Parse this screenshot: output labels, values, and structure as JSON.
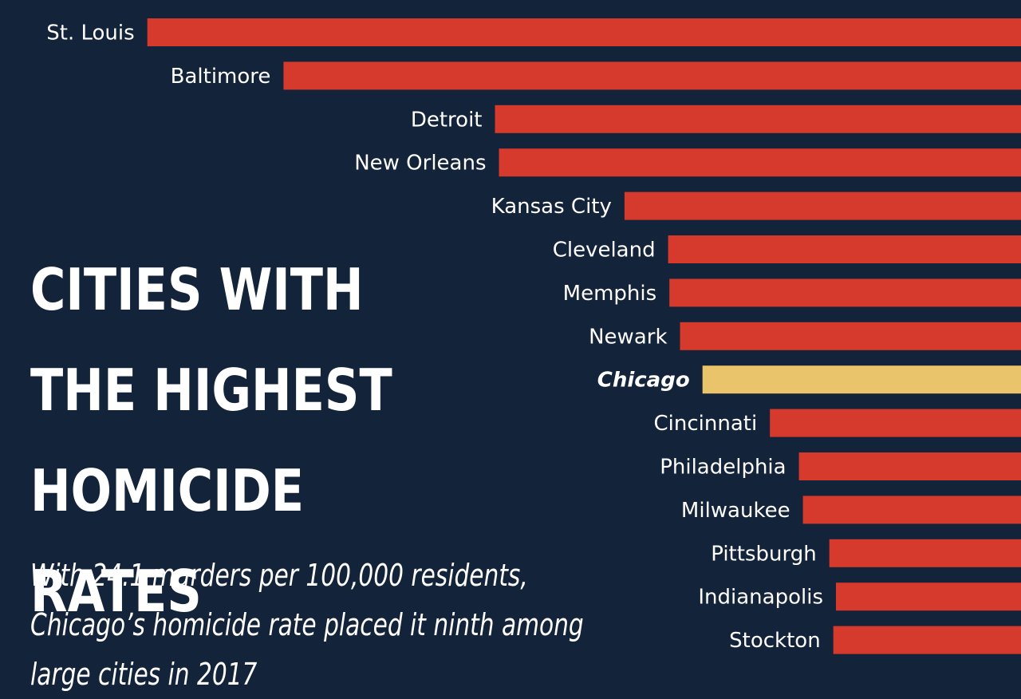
{
  "title": "CITIES WITH\nTHE HIGHEST\nHOMICIDE RATES",
  "subtitle": "With 24.1 murders per 100,000 residents, Chicago’s homicide rate placed it ninth among large cities in 2017",
  "colors": {
    "background": "#13233a",
    "bar": "#d63a2c",
    "highlight": "#e9c46a",
    "text": "#ffffff"
  },
  "chart_data": {
    "type": "bar",
    "orientation": "horizontal",
    "highlight": "Chicago",
    "categories": [
      "St. Louis",
      "Baltimore",
      "Detroit",
      "New Orleans",
      "Kansas City",
      "Cleveland",
      "Memphis",
      "Newark",
      "Chicago",
      "Cincinnati",
      "Philadelphia",
      "Milwaukee",
      "Pittsburgh",
      "Indianapolis",
      "Stockton"
    ],
    "values": [
      66.1,
      55.8,
      39.8,
      39.5,
      30.0,
      26.7,
      26.6,
      25.8,
      24.1,
      19.0,
      16.8,
      16.5,
      14.5,
      14.0,
      14.2
    ]
  }
}
